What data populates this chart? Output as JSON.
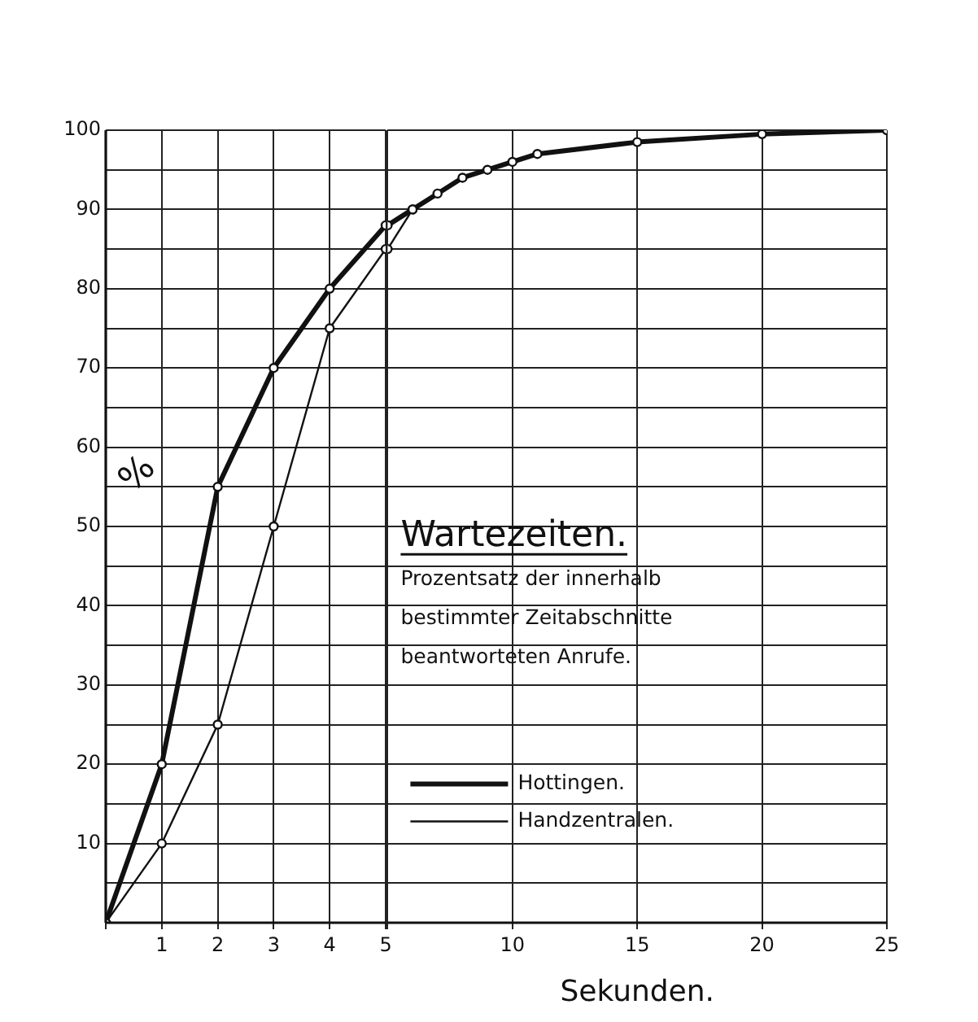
{
  "chart_data": [
    {
      "type": "line",
      "ylabel": "%",
      "series": [
        {
          "color": "#111111",
          "x": [
            0,
            1,
            2,
            3,
            4,
            5
          ],
          "values": [
            0,
            20,
            55,
            70,
            80,
            88
          ]
        },
        {
          "color": "#111111",
          "x": [
            0,
            1,
            2,
            3,
            4,
            5
          ],
          "values": [
            0,
            10,
            25,
            50,
            75,
            85
          ]
        }
      ],
      "xlim": [
        0,
        5
      ],
      "xticks": [
        {
          "value": 0,
          "label": null
        },
        1,
        2,
        3,
        4,
        5
      ],
      "ylim": [
        0,
        100
      ],
      "yticks": [
        {
          "value": 0,
          "label": null
        },
        {
          "value": 5,
          "label": null
        },
        10,
        {
          "value": 15,
          "label": null
        },
        20,
        {
          "value": 25,
          "label": null
        },
        30,
        {
          "value": 35,
          "label": null
        },
        40,
        {
          "value": 45,
          "label": null
        },
        50,
        {
          "value": 55,
          "label": null
        },
        60,
        {
          "value": 65,
          "label": null
        },
        70,
        {
          "value": 75,
          "label": null
        },
        80,
        {
          "value": 85,
          "label": null
        },
        90,
        {
          "value": 95,
          "label": null
        },
        100
      ],
      "grid": true,
      "marker": "circle",
      "line_style": "solid"
    },
    {
      "type": "line",
      "title": "Wartezeiten.",
      "subtitle": "Prozentsatz der innerhalb bestimmter Zeitabschnitte beantworteten Anrufe.",
      "xlabel": "Sekunden.",
      "series": [
        {
          "name": "Hottingen.",
          "color": "#111111",
          "x": [
            5,
            6,
            7,
            8,
            9,
            10,
            11,
            15,
            20,
            25
          ],
          "values": [
            88,
            90,
            92,
            94,
            95,
            96,
            97,
            98.5,
            99.5,
            100
          ]
        },
        {
          "name": "Handzentralen.",
          "color": "#111111",
          "x": [
            5,
            6
          ],
          "values": [
            85,
            90
          ]
        }
      ],
      "xlim": [
        5,
        25
      ],
      "xticks": [
        {
          "value": 5,
          "label": null
        },
        10,
        15,
        20,
        25
      ],
      "ylim": [
        0,
        100
      ],
      "yticks": [
        {
          "value": 0,
          "label": null
        },
        {
          "value": 5,
          "label": null
        },
        {
          "value": 10,
          "label": null
        },
        {
          "value": 15,
          "label": null
        },
        {
          "value": 20,
          "label": null
        },
        {
          "value": 25,
          "label": null
        },
        {
          "value": 30,
          "label": null
        },
        {
          "value": 35,
          "label": null
        },
        {
          "value": 40,
          "label": null
        },
        {
          "value": 45,
          "label": null
        },
        {
          "value": 50,
          "label": null
        },
        {
          "value": 55,
          "label": null
        },
        {
          "value": 60,
          "label": null
        },
        {
          "value": 65,
          "label": null
        },
        {
          "value": 70,
          "label": null
        },
        {
          "value": 75,
          "label": null
        },
        {
          "value": 80,
          "label": null
        },
        {
          "value": 85,
          "label": null
        },
        {
          "value": 90,
          "label": null
        },
        {
          "value": 95,
          "label": null
        },
        {
          "value": 100,
          "label": null
        }
      ],
      "tick_labels": "x",
      "grid": true,
      "legend": "bottom left",
      "marker": "circle",
      "line_style": "solid"
    }
  ]
}
